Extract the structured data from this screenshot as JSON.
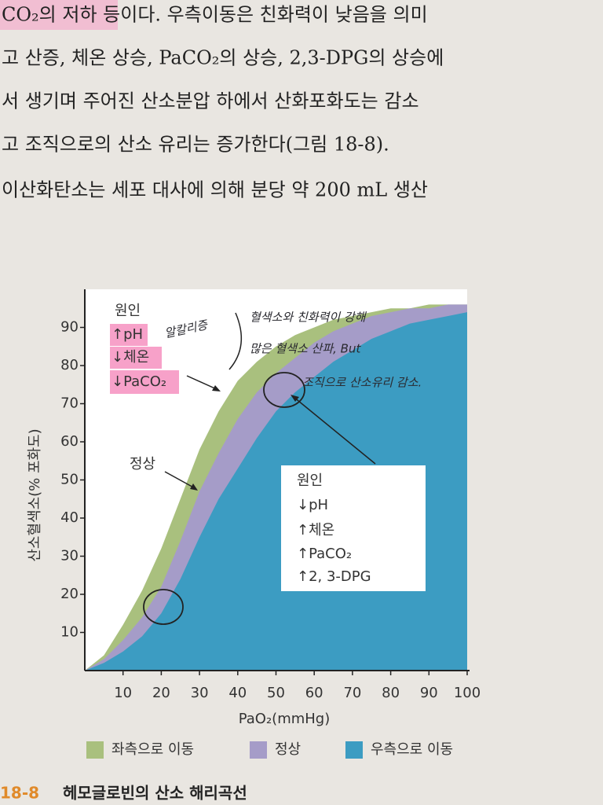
{
  "text_lines": [
    "CO₂의 저하 등이다. 우측이동은 친화력이 낮음을 의미",
    "고 산증, 체온 상승, PaCO₂의 상승, 2,3-DPG의 상승에",
    "서 생기며 주어진 산소분압 하에서 산화포화도는 감소",
    "고 조직으로의 산소 유리는 증가한다(그림 18-8).",
    "이산화탄소는 세포 대사에 의해 분당 약 200 mL 생산"
  ],
  "chart_data": {
    "type": "area",
    "x": [
      0,
      5,
      10,
      15,
      20,
      25,
      30,
      35,
      40,
      45,
      50,
      55,
      60,
      65,
      70,
      75,
      80,
      85,
      90,
      95,
      100
    ],
    "series": [
      {
        "name": "좌측으로 이동",
        "color": "#a9c07e",
        "values": [
          0,
          4,
          12,
          21,
          32,
          45,
          58,
          68,
          76,
          81,
          85,
          88,
          90,
          92,
          93,
          94,
          95,
          95,
          96,
          96,
          96
        ]
      },
      {
        "name": "정상",
        "color": "#a59cc8",
        "values": [
          0,
          3,
          8,
          14,
          22,
          34,
          47,
          57,
          66,
          73,
          78,
          82,
          86,
          89,
          91,
          93,
          94,
          95,
          95,
          96,
          96
        ]
      },
      {
        "name": "우측으로 이동",
        "color": "#3c9cc2",
        "values": [
          0,
          2,
          5,
          9,
          15,
          24,
          35,
          45,
          53,
          61,
          68,
          73,
          77,
          81,
          84,
          87,
          89,
          91,
          92,
          93,
          94
        ]
      }
    ],
    "xlim": [
      0,
      100
    ],
    "ylim": [
      0,
      100
    ],
    "xticks": [
      10,
      20,
      30,
      40,
      50,
      60,
      70,
      80,
      90,
      100
    ],
    "yticks": [
      10,
      20,
      30,
      40,
      50,
      60,
      70,
      80,
      90
    ],
    "x_label": "PaO₂(mmHg)",
    "y_label": "산소혈색소(% 포화도)",
    "left_box": [
      "원인",
      "↑pH",
      "↓체온",
      "↓PaCO₂"
    ],
    "normal_label": "정상",
    "right_box": [
      "원인",
      "↓pH",
      "↑체온",
      "↑PaCO₂",
      "↑2, 3-DPG"
    ],
    "handwritten": [
      "알칼리증",
      "혈색소와 친화력이 강해",
      "많은 혈색소 산파, But",
      "조직으로 산소유리 감소."
    ]
  },
  "caption": {
    "number": "18-8",
    "title": "헤모글로빈의 산소 해리곡선"
  }
}
